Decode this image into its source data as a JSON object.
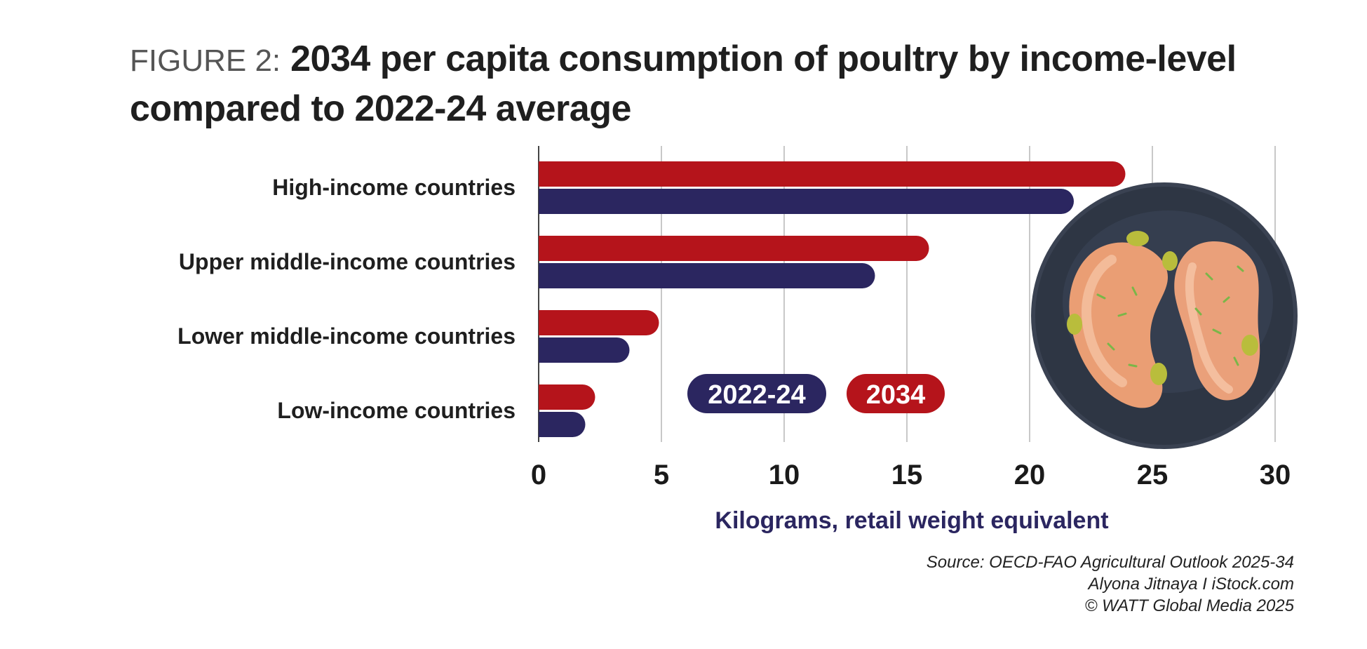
{
  "title": {
    "prefix": "FIGURE 2:",
    "main": "2034 per capita consumption of poultry by income-level compared to 2022-24 average"
  },
  "chart_data": {
    "type": "bar",
    "orientation": "horizontal",
    "categories": [
      "High-income countries",
      "Upper middle-income countries",
      "Lower middle-income countries",
      "Low-income countries"
    ],
    "series": [
      {
        "name": "2034",
        "color": "#b5141b",
        "values": [
          23.9,
          15.9,
          4.9,
          2.3
        ]
      },
      {
        "name": "2022-24",
        "color": "#2b2660",
        "values": [
          21.8,
          13.7,
          3.7,
          1.9
        ]
      }
    ],
    "xlim": [
      0,
      30
    ],
    "xticks": [
      0,
      5,
      10,
      15,
      20,
      25,
      30
    ],
    "xlabel": "Kilograms, retail weight equivalent",
    "xlabel_color": "#2b2660",
    "grid": "vertical",
    "legend": {
      "placement": "bottom-center",
      "items": [
        {
          "label": "2022-24",
          "color": "#2b2660"
        },
        {
          "label": "2034",
          "color": "#b5141b"
        }
      ]
    }
  },
  "credits": {
    "source": "Source: OECD-FAO Agricultural Outlook 2025-34",
    "image": "Alyona Jitnaya I iStock.com",
    "copyright": "© WATT Global Media 2025"
  },
  "illustration": {
    "icon": "chicken-breast-plate-icon",
    "plate_color": "#2e3644"
  }
}
